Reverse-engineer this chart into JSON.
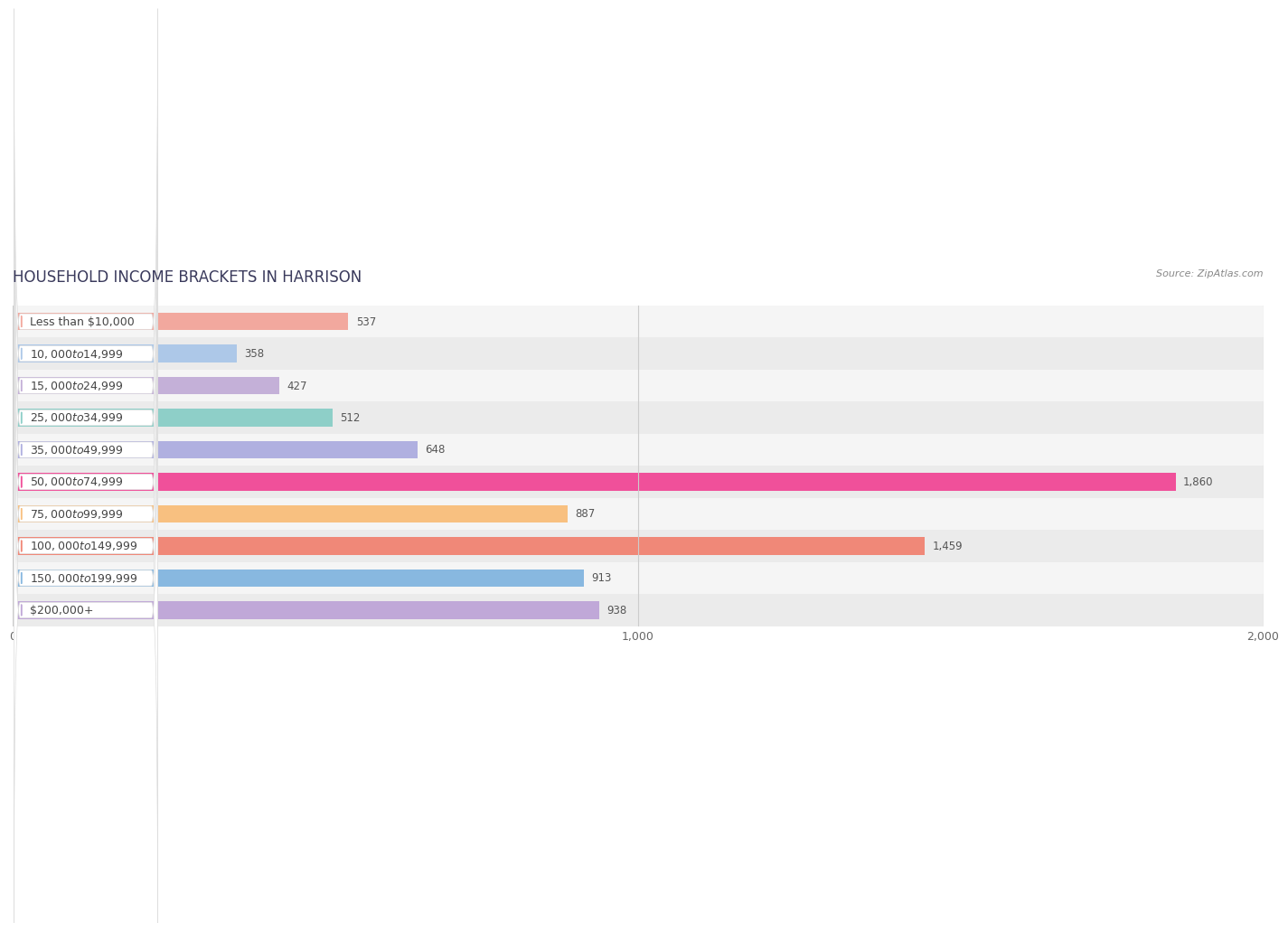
{
  "title": "HOUSEHOLD INCOME BRACKETS IN HARRISON",
  "source": "Source: ZipAtlas.com",
  "categories": [
    "Less than $10,000",
    "$10,000 to $14,999",
    "$15,000 to $24,999",
    "$25,000 to $34,999",
    "$35,000 to $49,999",
    "$50,000 to $74,999",
    "$75,000 to $99,999",
    "$100,000 to $149,999",
    "$150,000 to $199,999",
    "$200,000+"
  ],
  "values": [
    537,
    358,
    427,
    512,
    648,
    1860,
    887,
    1459,
    913,
    938
  ],
  "bar_colors": [
    "#f2a89e",
    "#adc8e8",
    "#c4b0d8",
    "#8ecfc8",
    "#b0b0e0",
    "#f0509a",
    "#f8c080",
    "#f08878",
    "#88b8e0",
    "#c0a8d8"
  ],
  "xlim": [
    0,
    2000
  ],
  "xticks": [
    0,
    1000,
    2000
  ],
  "background_color": "#ffffff",
  "row_bg_colors": [
    "#f5f5f5",
    "#ebebeb"
  ],
  "title_fontsize": 12,
  "label_fontsize": 9,
  "value_fontsize": 8.5,
  "bar_height": 0.55,
  "title_color": "#3a3a5c",
  "label_color": "#444444",
  "value_color": "#555555",
  "source_color": "#888888"
}
